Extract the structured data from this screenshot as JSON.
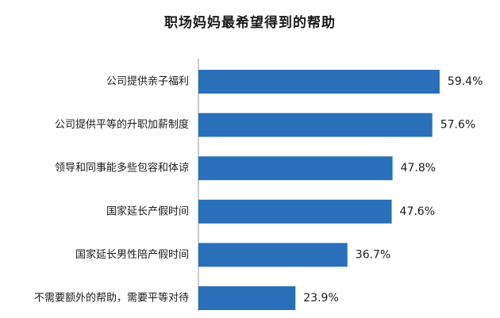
{
  "chart_data": {
    "type": "bar",
    "orientation": "horizontal",
    "title": "职场妈妈最希望得到的帮助",
    "categories": [
      "公司提供亲子福利",
      "公司提供平等的升职加薪制度",
      "领导和同事能多些包容和体谅",
      "国家延长产假时间",
      "国家延长男性陪产假时间",
      "不需要额外的帮助，需要平等对待"
    ],
    "values": [
      59.4,
      57.6,
      47.8,
      47.6,
      36.7,
      23.9
    ],
    "value_labels": [
      "59.4%",
      "57.6%",
      "47.8%",
      "47.6%",
      "36.7%",
      "23.9%"
    ],
    "xlim": [
      0,
      60
    ],
    "bar_color": "#2a6fba",
    "grid": false,
    "legend": "none"
  }
}
